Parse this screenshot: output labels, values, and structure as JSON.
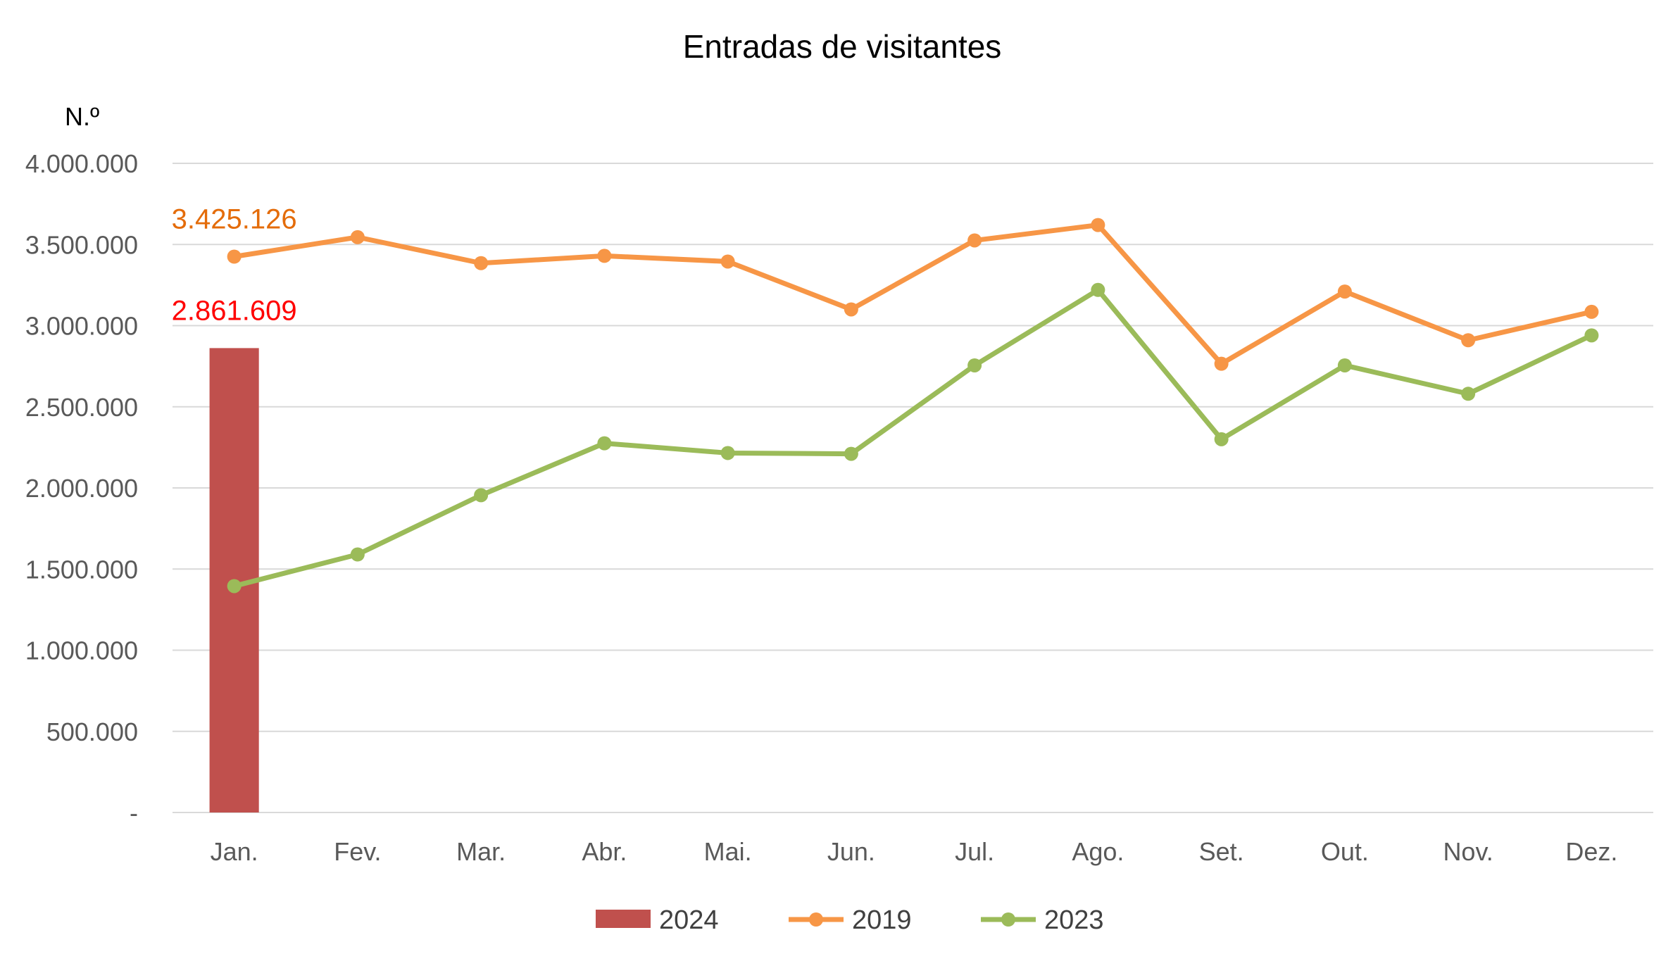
{
  "chart_data": {
    "type": "bar+line",
    "title": "Entradas de visitantes",
    "unit_label": "N.º",
    "categories": [
      "Jan.",
      "Fev.",
      "Mar.",
      "Abr.",
      "Mai.",
      "Jun.",
      "Jul.",
      "Ago.",
      "Set.",
      "Out.",
      "Nov.",
      "Dez."
    ],
    "ylim": [
      0,
      4000000
    ],
    "y_ticks": [
      0,
      500000,
      1000000,
      1500000,
      2000000,
      2500000,
      3000000,
      3500000,
      4000000
    ],
    "y_tick_labels": [
      "-",
      "500.000",
      "1.000.000",
      "1.500.000",
      "2.000.000",
      "2.500.000",
      "3.000.000",
      "3.500.000",
      "4.000.000"
    ],
    "grid": true,
    "legend_position": "bottom",
    "series": [
      {
        "name": "2024",
        "kind": "bar",
        "color": "#C0504D",
        "values": [
          2861609,
          null,
          null,
          null,
          null,
          null,
          null,
          null,
          null,
          null,
          null,
          null
        ],
        "data_label": "2.861.609",
        "data_label_color": "#FF0000"
      },
      {
        "name": "2019",
        "kind": "line",
        "color": "#F79646",
        "values": [
          3425126,
          3545000,
          3385000,
          3430000,
          3395000,
          3100000,
          3525000,
          3620000,
          2765000,
          3210000,
          2910000,
          3085000
        ],
        "data_label": "3.425.126",
        "data_label_color": "#E46C0A"
      },
      {
        "name": "2023",
        "kind": "line",
        "color": "#9BBB59",
        "values": [
          1395000,
          1590000,
          1955000,
          2275000,
          2215000,
          2210000,
          2755000,
          3220000,
          2300000,
          2755000,
          2580000,
          2940000
        ]
      }
    ]
  }
}
